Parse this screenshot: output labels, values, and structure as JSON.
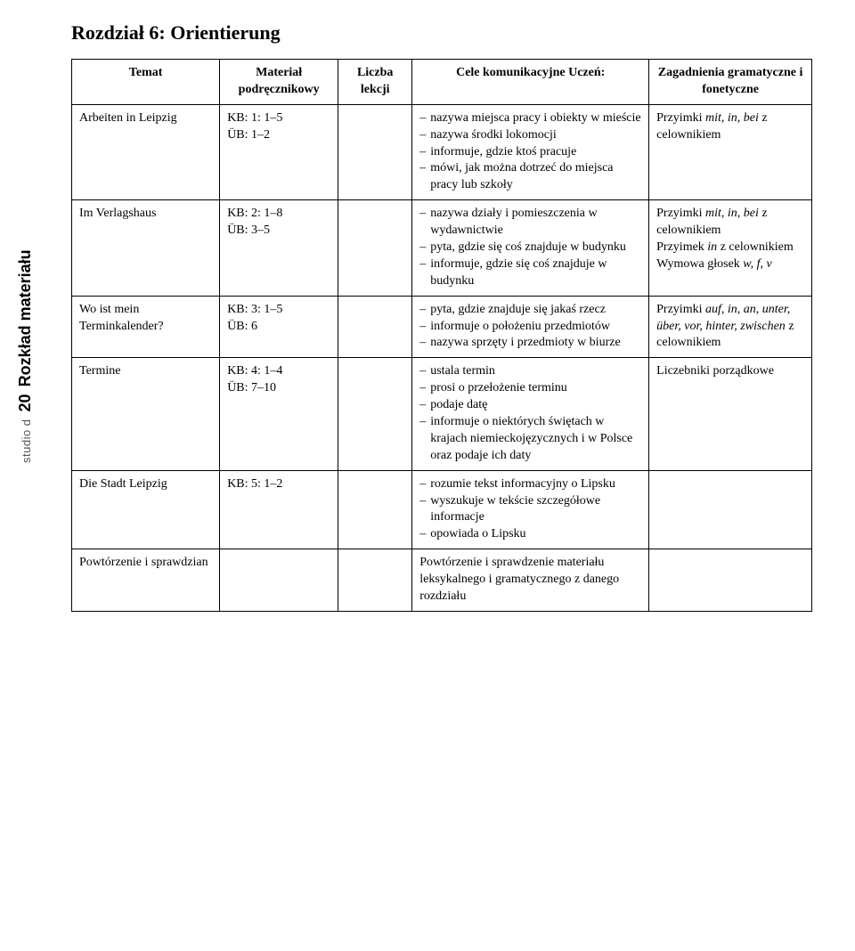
{
  "sideLabel": {
    "studio": "studio d",
    "pageNum": "20",
    "rozklad": "Rozkład materiału"
  },
  "chapterTitle": "Rozdział 6: Orientierung",
  "headers": {
    "temat": "Temat",
    "material": "Materiał podręcznikowy",
    "liczba": "Liczba lekcji",
    "cele": "Cele komunikacyjne Uczeń:",
    "zagadnienia": "Zagadnienia gramatyczne i fonetyczne"
  },
  "rows": [
    {
      "temat": "Arbeiten in Leipzig",
      "material": "KB: 1: 1–5\nÜB: 1–2",
      "liczba": "",
      "goals": [
        "nazywa miejsca pracy i obiekty w mieście",
        "nazywa środki lokomocji",
        "informuje, gdzie ktoś pracuje",
        "mówi, jak można dotrzeć do miejsca pracy lub szkoły"
      ],
      "grammar": "Przyimki <i>mit, in, bei</i> z celownikiem"
    },
    {
      "temat": "Im Verlagshaus",
      "material": "KB: 2: 1–8\nÜB: 3–5",
      "liczba": "",
      "goals": [
        "nazywa działy i pomieszczenia w wydawnictwie",
        "pyta, gdzie się coś znajduje w budynku",
        "informuje, gdzie się coś znajduje w budynku"
      ],
      "grammar": "Przyimki <i>mit, in, bei</i> z celownikiem<br>Przyimek <i>in</i> z celownikiem<br>Wymowa głosek <i>w, f, v</i>"
    },
    {
      "temat": "Wo ist mein Terminkalender?",
      "material": "KB: 3: 1–5\nÜB: 6",
      "liczba": "",
      "goals": [
        "pyta, gdzie znajduje się jakaś rzecz",
        "informuje o położeniu przedmiotów",
        "nazywa sprzęty i przedmioty w biurze"
      ],
      "grammar": "Przyimki <i>auf, in, an, unter, über, vor, hinter, zwischen</i> z celownikiem"
    },
    {
      "temat": "Termine",
      "material": "KB: 4: 1–4\nÜB: 7–10",
      "liczba": "",
      "goals": [
        "ustala termin",
        "prosi o przełożenie terminu",
        "podaje datę",
        "informuje o niektórych świętach w krajach niemieckojęzycznych i w Polsce oraz podaje ich daty"
      ],
      "grammar": "Liczebniki porządkowe"
    },
    {
      "temat": "Die Stadt Leipzig",
      "material": "KB: 5: 1–2",
      "liczba": "",
      "goals": [
        "rozumie tekst informacyjny o Lipsku",
        "wyszukuje w tekście szczegółowe informacje",
        "opowiada o Lipsku"
      ],
      "grammar": ""
    },
    {
      "temat": "Powtórzenie i sprawdzian",
      "material": "",
      "liczba": "",
      "goals_plain": "Powtórzenie i sprawdzenie materiału leksykalnego i gramatycznego z danego rozdziału",
      "grammar": ""
    }
  ]
}
